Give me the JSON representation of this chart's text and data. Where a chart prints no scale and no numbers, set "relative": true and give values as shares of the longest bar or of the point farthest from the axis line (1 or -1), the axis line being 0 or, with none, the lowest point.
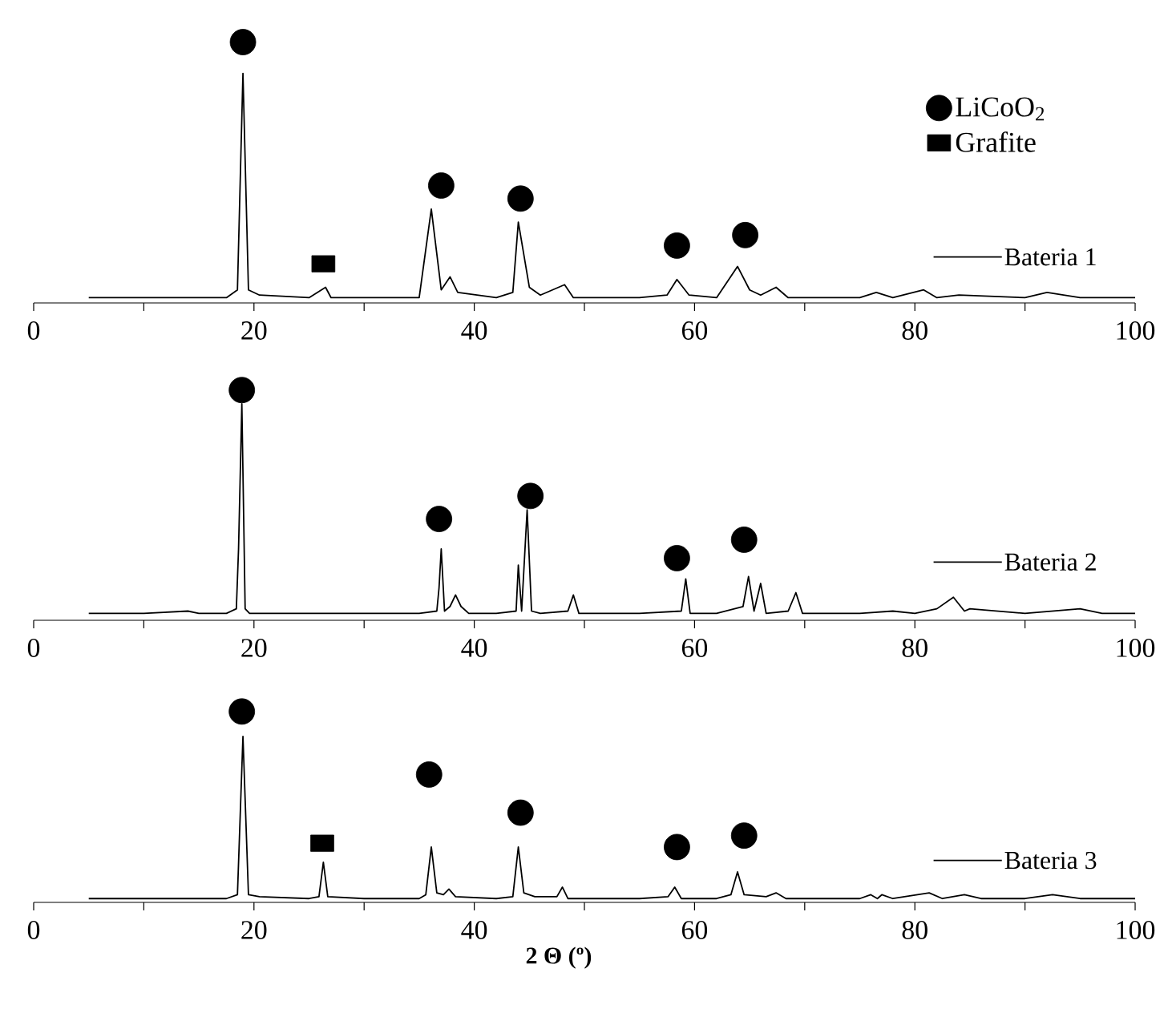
{
  "chart_data": [
    {
      "type": "line",
      "relative": true,
      "xlim": [
        0,
        100
      ],
      "xticks": [
        0,
        {
          "value": 10,
          "label": null
        },
        20,
        {
          "value": 30,
          "label": null
        },
        40,
        {
          "value": 50,
          "label": null
        },
        60,
        {
          "value": 70,
          "label": null
        },
        80,
        {
          "value": 90,
          "label": null
        },
        100
      ],
      "legend": "right",
      "series": [
        {
          "name": "Bateria 1",
          "color": "#000000",
          "x": [
            5,
            10,
            15,
            17.5,
            18.5,
            19,
            19.5,
            20.5,
            25,
            26.5,
            27,
            30,
            35,
            36.1,
            37,
            37.8,
            38.5,
            42,
            43.5,
            44,
            45,
            46,
            48.2,
            49,
            55,
            57.5,
            58.4,
            59.5,
            62,
            63.9,
            65,
            66,
            67.4,
            68.5,
            75,
            76.5,
            78,
            80.8,
            82,
            84,
            90,
            92,
            95,
            100
          ],
          "values": [
            0.02,
            0.02,
            0.02,
            0.02,
            0.05,
            0.88,
            0.05,
            0.03,
            0.02,
            0.06,
            0.02,
            0.02,
            0.02,
            0.36,
            0.05,
            0.1,
            0.04,
            0.02,
            0.04,
            0.31,
            0.06,
            0.03,
            0.07,
            0.02,
            0.02,
            0.03,
            0.09,
            0.03,
            0.02,
            0.14,
            0.05,
            0.03,
            0.06,
            0.02,
            0.02,
            0.04,
            0.02,
            0.05,
            0.02,
            0.03,
            0.02,
            0.04,
            0.02,
            0.02
          ]
        },
        {
          "type": "scatter",
          "name": "LiCoO$_{2}$",
          "color": "#000000",
          "marker": "circle",
          "x": [
            19,
            37.0,
            44.2,
            58.4,
            64.6
          ],
          "values": [
            1,
            0.45,
            0.4,
            0.22,
            0.26
          ]
        },
        {
          "type": "scatter",
          "name": "Grafite",
          "color": "#000000",
          "marker": "square",
          "x": [
            26.3
          ],
          "values": [
            0.15
          ]
        }
      ]
    },
    {
      "type": "line",
      "relative": true,
      "xlim": [
        0,
        100
      ],
      "xticks": [
        0,
        {
          "value": 10,
          "label": null
        },
        20,
        {
          "value": 30,
          "label": null
        },
        40,
        {
          "value": 50,
          "label": null
        },
        60,
        {
          "value": 70,
          "label": null
        },
        80,
        {
          "value": 90,
          "label": null
        },
        100
      ],
      "series": [
        {
          "name": "Bateria 2",
          "color": "#000000",
          "x": [
            5,
            10,
            14,
            15,
            17.5,
            18.4,
            18.6,
            18.9,
            19.2,
            19.6,
            22,
            30,
            35,
            36.6,
            36.8,
            37.0,
            37.3,
            37.8,
            38.3,
            38.8,
            39.5,
            42,
            43.8,
            44.0,
            44.3,
            44.8,
            45.2,
            46,
            48.5,
            49.0,
            49.5,
            55,
            58.8,
            59.2,
            59.6,
            62,
            64.4,
            64.9,
            65.4,
            66.0,
            66.5,
            68.5,
            69.2,
            69.8,
            75,
            78,
            80,
            82,
            83.5,
            84.5,
            85,
            90,
            95,
            97,
            100
          ],
          "values": [
            0.03,
            0.03,
            0.04,
            0.03,
            0.03,
            0.05,
            0.31,
            0.94,
            0.05,
            0.03,
            0.03,
            0.03,
            0.03,
            0.04,
            0.14,
            0.31,
            0.04,
            0.06,
            0.11,
            0.06,
            0.03,
            0.03,
            0.04,
            0.24,
            0.04,
            0.48,
            0.04,
            0.03,
            0.04,
            0.11,
            0.03,
            0.03,
            0.04,
            0.18,
            0.03,
            0.03,
            0.06,
            0.19,
            0.04,
            0.16,
            0.03,
            0.04,
            0.12,
            0.03,
            0.03,
            0.04,
            0.03,
            0.05,
            0.1,
            0.04,
            0.05,
            0.03,
            0.05,
            0.03,
            0.03
          ]
        },
        {
          "type": "scatter",
          "color": "#000000",
          "marker": "circle",
          "x": [
            18.9,
            36.8,
            45.1,
            58.4,
            64.5
          ],
          "values": [
            1,
            0.44,
            0.54,
            0.27,
            0.35
          ]
        }
      ]
    },
    {
      "type": "line",
      "relative": true,
      "xlim": [
        0,
        100
      ],
      "xticks": [
        0,
        {
          "value": 10,
          "label": null
        },
        20,
        {
          "value": 30,
          "label": null
        },
        40,
        {
          "value": 50,
          "label": null
        },
        60,
        {
          "value": 70,
          "label": null
        },
        80,
        {
          "value": 90,
          "label": null
        },
        100
      ],
      "xlabel": "2 Θ (º)",
      "series": [
        {
          "name": "Bateria 3",
          "color": "#000000",
          "x": [
            5,
            10,
            15,
            17.5,
            18.5,
            19,
            19.5,
            20.5,
            25,
            25.9,
            26.3,
            26.7,
            30,
            35,
            35.6,
            36.1,
            36.6,
            37.2,
            37.7,
            38.3,
            42,
            43.5,
            44.0,
            44.5,
            45.5,
            47.5,
            48.0,
            48.5,
            55,
            57.6,
            58.2,
            58.8,
            62,
            63.3,
            63.9,
            64.5,
            66.5,
            67.4,
            68.3,
            75,
            76,
            76.6,
            77,
            78,
            81.3,
            82.5,
            84.5,
            86,
            90,
            92.5,
            95,
            100
          ],
          "values": [
            0.02,
            0.02,
            0.02,
            0.02,
            0.04,
            0.87,
            0.04,
            0.03,
            0.02,
            0.03,
            0.21,
            0.03,
            0.02,
            0.02,
            0.04,
            0.29,
            0.05,
            0.04,
            0.07,
            0.03,
            0.02,
            0.03,
            0.29,
            0.05,
            0.03,
            0.03,
            0.08,
            0.02,
            0.02,
            0.03,
            0.08,
            0.02,
            0.02,
            0.04,
            0.16,
            0.04,
            0.03,
            0.05,
            0.02,
            0.02,
            0.04,
            0.02,
            0.04,
            0.02,
            0.05,
            0.02,
            0.04,
            0.02,
            0.02,
            0.04,
            0.02,
            0.02
          ]
        },
        {
          "type": "scatter",
          "color": "#000000",
          "marker": "circle",
          "x": [
            18.9,
            35.9,
            44.2,
            58.4,
            64.5
          ],
          "values": [
            1,
            0.67,
            0.47,
            0.29,
            0.35
          ]
        },
        {
          "type": "scatter",
          "color": "#000000",
          "marker": "square",
          "x": [
            26.2
          ],
          "values": [
            0.31
          ]
        }
      ]
    }
  ]
}
